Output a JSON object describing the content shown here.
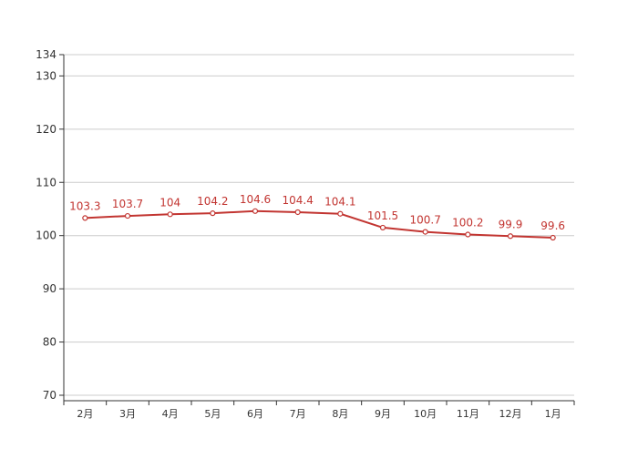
{
  "chart_data": {
    "type": "line",
    "title": "",
    "xlabel": "",
    "ylabel": "",
    "categories": [
      "2月",
      "3月",
      "4月",
      "5月",
      "6月",
      "7月",
      "8月",
      "9月",
      "10月",
      "11月",
      "12月",
      "1月"
    ],
    "series": [
      {
        "values": [
          103.3,
          103.7,
          104,
          104.2,
          104.6,
          104.4,
          104.1,
          101.5,
          100.7,
          100.2,
          99.9,
          99.6
        ],
        "labels": [
          "103.3",
          "103.7",
          "104",
          "104.2",
          "104.6",
          "104.4",
          "104.1",
          "101.5",
          "100.7",
          "100.2",
          "99.9",
          "99.6"
        ],
        "color": "#c23531"
      }
    ],
    "ylim": [
      70,
      134
    ],
    "yticks": [
      70,
      80,
      90,
      100,
      110,
      120,
      130,
      134
    ],
    "ytick_labels": [
      "70",
      "80",
      "90",
      "100",
      "110",
      "120",
      "130",
      "134"
    ],
    "grid": true,
    "legend": "none",
    "colors": {
      "line": "#c23531",
      "grid": "#cccccc",
      "axis": "#333333",
      "point_fill": "#ffffff"
    }
  }
}
